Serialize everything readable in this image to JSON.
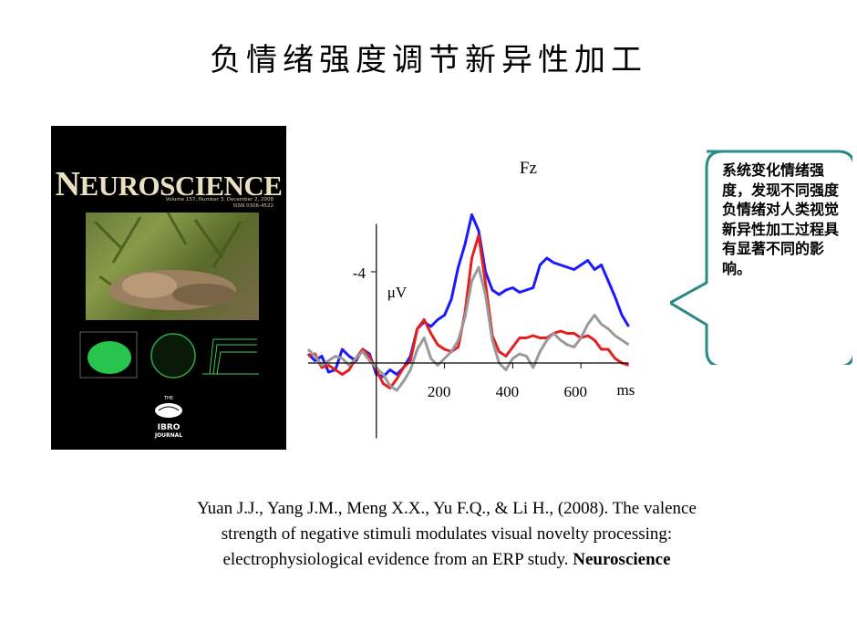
{
  "slide": {
    "title": "负情绪强度调节新异性加工"
  },
  "cover": {
    "journal_title": "Neuroscience",
    "volume_line": "Volume 157, Number 3, December 2, 2008",
    "issn_line": "ISSN 0306-4522",
    "logo_top": "THE",
    "logo_name": "IBRO",
    "logo_bottom": "JOURNAL"
  },
  "bubble": {
    "text": "系统变化情绪强度，发现不同强度负情绪对人类视觉新异性加工过程具有显著不同的影响。"
  },
  "citation": {
    "line1": "Yuan J.J., Yang J.M., Meng X.X., Yu F.Q.,  & Li H., (2008). The valence",
    "line2": "strength of negative stimuli modulates visual novelty processing:",
    "line3_prefix": "electrophysiological  evidence from an ERP study. ",
    "line3_journal": "Neuroscience"
  },
  "chart_data": {
    "type": "line",
    "title": "Fz",
    "ylabel": "μV",
    "y_tick_label": "-4",
    "x_unit": "ms",
    "x_ticks": [
      200,
      400,
      600
    ],
    "xlim": [
      -200,
      800
    ],
    "ylim_inverted_note": "negative up",
    "ylim": [
      -6.5,
      2.2
    ],
    "x": [
      -200,
      -180,
      -160,
      -140,
      -120,
      -100,
      -80,
      -60,
      -40,
      -20,
      0,
      20,
      40,
      60,
      80,
      100,
      120,
      140,
      160,
      180,
      200,
      220,
      240,
      260,
      280,
      300,
      320,
      340,
      360,
      380,
      400,
      420,
      440,
      460,
      480,
      500,
      520,
      540,
      560,
      580,
      600,
      620,
      640,
      660,
      680,
      700,
      720,
      740
    ],
    "series": [
      {
        "color": "#1a1aff",
        "values": [
          -0.4,
          -0.1,
          -0.3,
          0.4,
          0.3,
          -0.6,
          -0.3,
          -0.1,
          -0.6,
          -0.4,
          0.5,
          0.6,
          0.3,
          0.5,
          0.2,
          -0.3,
          -1.5,
          -1.8,
          -1.6,
          -1.9,
          -2.1,
          -2.8,
          -4.2,
          -5.2,
          -6.5,
          -5.8,
          -4.0,
          -3.2,
          -3.0,
          -3.2,
          -3.3,
          -3.1,
          -3.2,
          -3.3,
          -4.3,
          -4.6,
          -4.4,
          -4.3,
          -4.2,
          -4.1,
          -4.3,
          -4.5,
          -4.1,
          -4.3,
          -3.6,
          -2.9,
          -2.1,
          -1.6
        ]
      },
      {
        "color": "#e61e1e",
        "values": [
          -0.3,
          -0.4,
          0.2,
          0.1,
          0.3,
          0.5,
          0.3,
          -0.2,
          -0.6,
          -0.3,
          0.3,
          0.9,
          1.1,
          0.7,
          0.2,
          -0.1,
          -1.5,
          -1.9,
          -1.3,
          -0.8,
          -0.6,
          -0.5,
          -0.7,
          -2.2,
          -4.6,
          -5.6,
          -3.5,
          -1.2,
          -0.5,
          -0.3,
          -0.7,
          -1.1,
          -1.1,
          -1.2,
          -1.1,
          -1.1,
          -1.3,
          -1.4,
          -1.3,
          -1.3,
          -1.1,
          -1.2,
          -1.0,
          -0.6,
          -0.6,
          -0.2,
          0.0,
          0.1
        ]
      },
      {
        "color": "#999999",
        "values": [
          -0.6,
          -0.3,
          0.1,
          -0.1,
          -0.3,
          -0.2,
          0.1,
          -0.2,
          -0.5,
          -0.1,
          0.2,
          0.5,
          1.0,
          1.2,
          0.8,
          0.3,
          -0.6,
          -1.1,
          -0.2,
          0.1,
          -0.2,
          -0.5,
          -1.0,
          -2.0,
          -3.6,
          -4.2,
          -3.0,
          -1.0,
          0.0,
          0.3,
          -0.2,
          -0.4,
          -0.3,
          0.2,
          -0.5,
          -1.0,
          -1.3,
          -1.0,
          -0.8,
          -0.7,
          -1.1,
          -1.7,
          -2.1,
          -1.7,
          -1.5,
          -1.2,
          -1.0,
          -0.8
        ]
      }
    ]
  }
}
